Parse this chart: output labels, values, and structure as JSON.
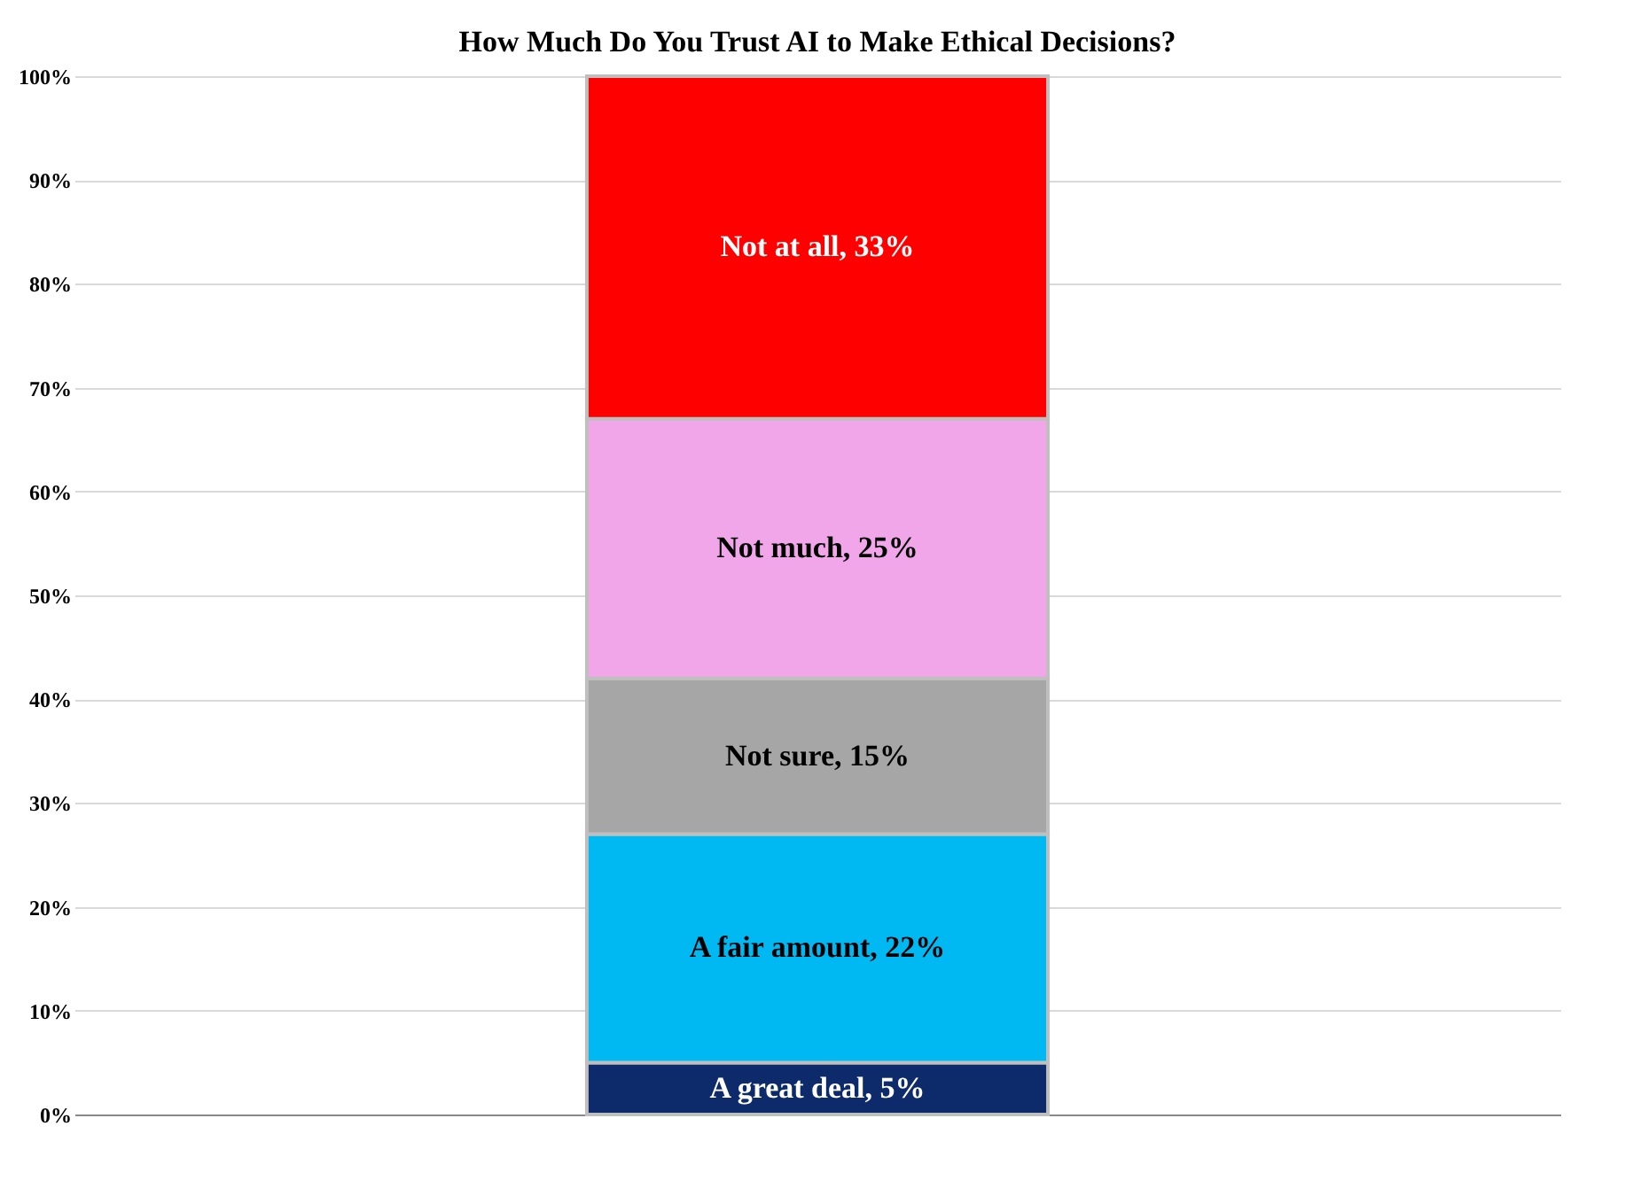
{
  "chart_data": {
    "type": "bar",
    "title": "How Much Do You Trust AI to Make Ethical Decisions?",
    "categories": [
      null
    ],
    "stacked": true,
    "series": [
      {
        "color": "#0d2a6b",
        "values": [
          5
        ],
        "value_labels": [
          "A great deal, 5%"
        ]
      },
      {
        "color": "#00b9f2",
        "values": [
          22
        ],
        "value_labels": [
          "A fair amount, 22%"
        ]
      },
      {
        "color": "#a6a6a6",
        "values": [
          15
        ],
        "value_labels": [
          "Not sure, 15%"
        ]
      },
      {
        "color": "#f0a6e8",
        "values": [
          25
        ],
        "value_labels": [
          "Not much, 25%"
        ]
      },
      {
        "color": "#ff0000",
        "values": [
          33
        ],
        "value_labels": [
          "Not at all, 33%"
        ]
      }
    ],
    "ylim": [
      0,
      100
    ],
    "yticks": [
      {
        "value": 0,
        "label": "0%"
      },
      {
        "value": 10,
        "label": "10%"
      },
      {
        "value": 20,
        "label": "20%"
      },
      {
        "value": 30,
        "label": "30%"
      },
      {
        "value": 40,
        "label": "40%"
      },
      {
        "value": 50,
        "label": "50%"
      },
      {
        "value": 60,
        "label": "60%"
      },
      {
        "value": 70,
        "label": "70%"
      },
      {
        "value": 80,
        "label": "80%"
      },
      {
        "value": 90,
        "label": "90%"
      },
      {
        "value": 100,
        "label": "100%"
      }
    ],
    "grid": "y",
    "legend": false
  }
}
